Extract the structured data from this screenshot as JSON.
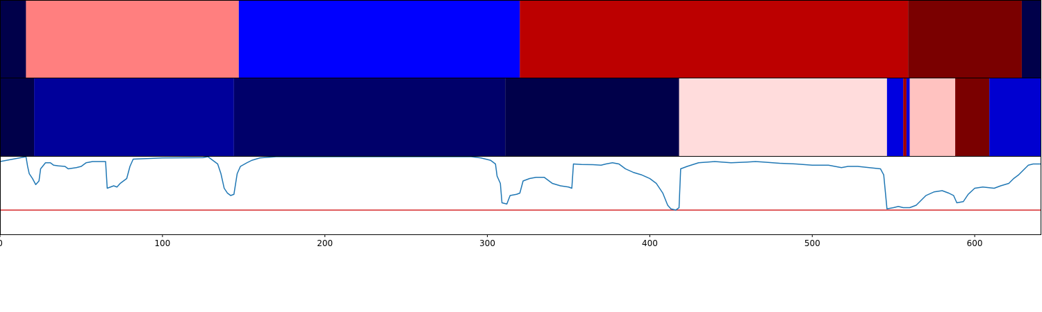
{
  "chart_data": [
    {
      "type": "heatmap",
      "xlim": [
        0,
        641
      ],
      "segments": [
        {
          "start": 0,
          "end": 16,
          "color": "#00004a"
        },
        {
          "start": 16,
          "end": 147,
          "color": "#ff7f7f"
        },
        {
          "start": 147,
          "end": 320,
          "color": "#0000ff"
        },
        {
          "start": 320,
          "end": 559,
          "color": "#bc0000"
        },
        {
          "start": 559,
          "end": 629,
          "color": "#7a0000"
        },
        {
          "start": 629,
          "end": 641,
          "color": "#00004a"
        }
      ]
    },
    {
      "type": "heatmap",
      "xlim": [
        0,
        641
      ],
      "segments": [
        {
          "start": 0,
          "end": 21,
          "color": "#00004a"
        },
        {
          "start": 21,
          "end": 144,
          "color": "#00009a"
        },
        {
          "start": 144,
          "end": 311,
          "color": "#00006a"
        },
        {
          "start": 311,
          "end": 418,
          "color": "#00004a"
        },
        {
          "start": 418,
          "end": 546,
          "color": "#ffdcdc"
        },
        {
          "start": 546,
          "end": 556,
          "color": "#0000e0"
        },
        {
          "start": 556,
          "end": 558,
          "color": "#a00000"
        },
        {
          "start": 558,
          "end": 560,
          "color": "#0000e0"
        },
        {
          "start": 560,
          "end": 588,
          "color": "#ffc2c0"
        },
        {
          "start": 588,
          "end": 609,
          "color": "#7a0000"
        },
        {
          "start": 609,
          "end": 641,
          "color": "#0000d0"
        }
      ]
    },
    {
      "type": "line",
      "xlim": [
        0,
        641
      ],
      "ylim": [
        -0.32,
        0.0
      ],
      "xticks": [
        0,
        100,
        200,
        300,
        400,
        500,
        600
      ],
      "threshold": {
        "value": -0.22,
        "color": "#d62728"
      },
      "series": [
        {
          "color": "#1f77b4",
          "points": [
            [
              0,
              -0.02
            ],
            [
              16,
              0.0
            ],
            [
              17,
              -0.04
            ],
            [
              18,
              -0.07
            ],
            [
              20,
              -0.09
            ],
            [
              22,
              -0.115
            ],
            [
              24,
              -0.1
            ],
            [
              25,
              -0.05
            ],
            [
              28,
              -0.025
            ],
            [
              31,
              -0.025
            ],
            [
              33,
              -0.035
            ],
            [
              36,
              -0.038
            ],
            [
              40,
              -0.04
            ],
            [
              42,
              -0.05
            ],
            [
              47,
              -0.045
            ],
            [
              50,
              -0.04
            ],
            [
              53,
              -0.025
            ],
            [
              57,
              -0.02
            ],
            [
              65,
              -0.02
            ],
            [
              66,
              -0.13
            ],
            [
              70,
              -0.12
            ],
            [
              72,
              -0.125
            ],
            [
              74,
              -0.11
            ],
            [
              76,
              -0.1
            ],
            [
              78,
              -0.09
            ],
            [
              80,
              -0.04
            ],
            [
              82,
              -0.01
            ],
            [
              90,
              -0.008
            ],
            [
              100,
              -0.005
            ],
            [
              125,
              -0.004
            ],
            [
              128,
              0.0
            ],
            [
              130,
              -0.01
            ],
            [
              134,
              -0.03
            ],
            [
              136,
              -0.07
            ],
            [
              138,
              -0.13
            ],
            [
              140,
              -0.15
            ],
            [
              142,
              -0.16
            ],
            [
              144,
              -0.155
            ],
            [
              146,
              -0.07
            ],
            [
              148,
              -0.04
            ],
            [
              152,
              -0.025
            ],
            [
              155,
              -0.015
            ],
            [
              160,
              -0.005
            ],
            [
              170,
              0.0
            ],
            [
              180,
              0.0
            ],
            [
              200,
              0.0
            ],
            [
              250,
              0.0
            ],
            [
              290,
              0.0
            ],
            [
              296,
              -0.005
            ],
            [
              302,
              -0.015
            ],
            [
              305,
              -0.03
            ],
            [
              306,
              -0.08
            ],
            [
              308,
              -0.11
            ],
            [
              309,
              -0.19
            ],
            [
              312,
              -0.195
            ],
            [
              314,
              -0.16
            ],
            [
              318,
              -0.155
            ],
            [
              320,
              -0.15
            ],
            [
              322,
              -0.1
            ],
            [
              326,
              -0.09
            ],
            [
              330,
              -0.085
            ],
            [
              335,
              -0.085
            ],
            [
              340,
              -0.11
            ],
            [
              345,
              -0.12
            ],
            [
              350,
              -0.125
            ],
            [
              352,
              -0.13
            ],
            [
              353,
              -0.03
            ],
            [
              358,
              -0.032
            ],
            [
              365,
              -0.033
            ],
            [
              370,
              -0.035
            ],
            [
              373,
              -0.03
            ],
            [
              377,
              -0.025
            ],
            [
              381,
              -0.03
            ],
            [
              385,
              -0.05
            ],
            [
              390,
              -0.065
            ],
            [
              395,
              -0.075
            ],
            [
              400,
              -0.09
            ],
            [
              404,
              -0.11
            ],
            [
              408,
              -0.15
            ],
            [
              411,
              -0.2
            ],
            [
              413,
              -0.215
            ],
            [
              416,
              -0.22
            ],
            [
              418,
              -0.21
            ],
            [
              419,
              -0.05
            ],
            [
              423,
              -0.04
            ],
            [
              430,
              -0.025
            ],
            [
              440,
              -0.02
            ],
            [
              450,
              -0.025
            ],
            [
              460,
              -0.022
            ],
            [
              465,
              -0.02
            ],
            [
              470,
              -0.022
            ],
            [
              480,
              -0.027
            ],
            [
              490,
              -0.03
            ],
            [
              500,
              -0.035
            ],
            [
              510,
              -0.035
            ],
            [
              518,
              -0.045
            ],
            [
              522,
              -0.04
            ],
            [
              528,
              -0.04
            ],
            [
              535,
              -0.045
            ],
            [
              542,
              -0.05
            ],
            [
              544,
              -0.075
            ],
            [
              546,
              -0.215
            ],
            [
              550,
              -0.21
            ],
            [
              553,
              -0.205
            ],
            [
              556,
              -0.21
            ],
            [
              560,
              -0.21
            ],
            [
              564,
              -0.2
            ],
            [
              567,
              -0.18
            ],
            [
              570,
              -0.16
            ],
            [
              575,
              -0.145
            ],
            [
              580,
              -0.14
            ],
            [
              584,
              -0.15
            ],
            [
              587,
              -0.16
            ],
            [
              589,
              -0.19
            ],
            [
              593,
              -0.185
            ],
            [
              596,
              -0.155
            ],
            [
              600,
              -0.13
            ],
            [
              605,
              -0.125
            ],
            [
              612,
              -0.13
            ],
            [
              616,
              -0.12
            ],
            [
              621,
              -0.11
            ],
            [
              624,
              -0.09
            ],
            [
              627,
              -0.075
            ],
            [
              630,
              -0.055
            ],
            [
              633,
              -0.035
            ],
            [
              636,
              -0.03
            ],
            [
              641,
              -0.03
            ]
          ]
        }
      ]
    }
  ]
}
